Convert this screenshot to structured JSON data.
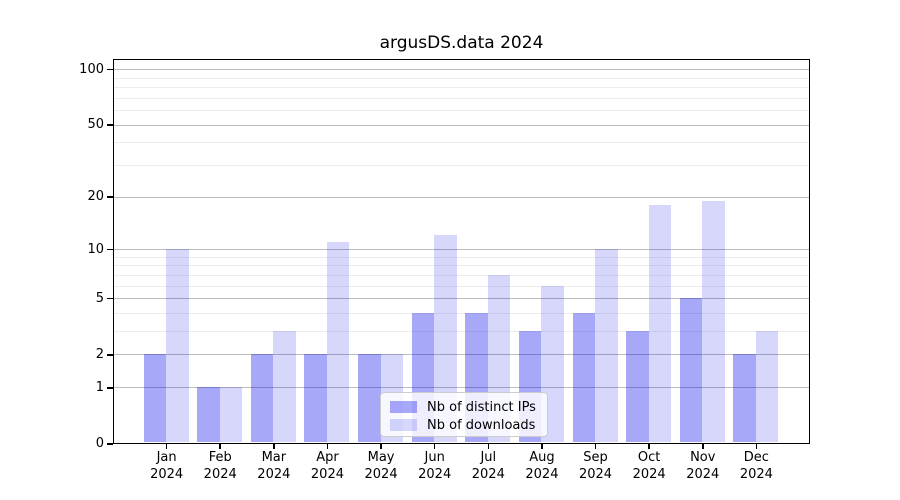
{
  "title": "argusDS.data 2024",
  "chart_data": {
    "type": "bar",
    "title": "argusDS.data 2024",
    "categories": [
      "Jan",
      "Feb",
      "Mar",
      "Apr",
      "May",
      "Jun",
      "Jul",
      "Aug",
      "Sep",
      "Oct",
      "Nov",
      "Dec"
    ],
    "category_year": "2024",
    "series": [
      {
        "name": "Nb of distinct IPs",
        "color_hex": "#0000ee",
        "fill_rgba": "rgba(0,0,238,0.34)",
        "values": [
          2,
          1,
          2,
          2,
          2,
          4,
          4,
          3,
          4,
          3,
          5,
          2
        ]
      },
      {
        "name": "Nb of downloads",
        "color_hex": "#0000ee",
        "fill_rgba": "rgba(0,0,238,0.155)",
        "values": [
          10,
          1,
          3,
          11,
          2,
          12,
          7,
          6,
          10,
          18,
          19,
          3
        ]
      }
    ],
    "yscale": "log1p",
    "ylim": [
      0,
      114
    ],
    "y_major_ticks": [
      0,
      1,
      2,
      5,
      10,
      20,
      50,
      100
    ],
    "y_tick_labels": [
      "0",
      "1",
      "2",
      "5",
      "10",
      "20",
      "50",
      "100"
    ],
    "y_minor_gridlines": [
      3,
      4,
      6,
      7,
      8,
      9,
      30,
      40,
      60,
      70,
      80,
      90
    ],
    "grid": true,
    "legend_position": "lower center",
    "xlabel": "",
    "ylabel": ""
  },
  "colors": {
    "grid_major": "#bdbdbd",
    "grid_minor": "#ededed",
    "axis": "#000000",
    "background": "#ffffff"
  }
}
